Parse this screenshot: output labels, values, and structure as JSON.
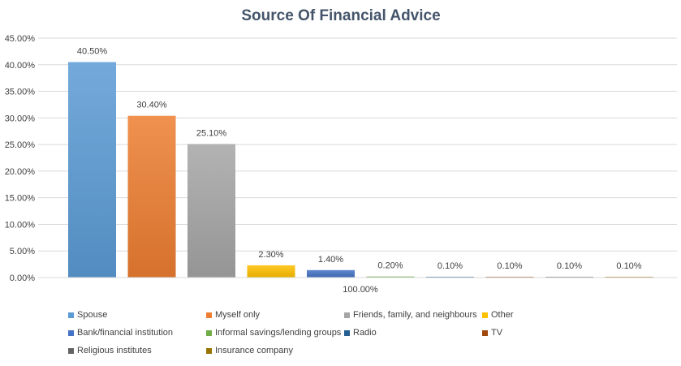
{
  "chart_data": {
    "type": "bar",
    "title": "Source Of Financial Advice",
    "categories": [
      "Spouse",
      "Myself only",
      "Friends, family, and neighbours",
      "Other",
      "Bank/financial institution",
      "Informal savings/lending groups",
      "Radio",
      "TV",
      "Religious institutes",
      "Insurance company"
    ],
    "values": [
      40.5,
      30.4,
      25.1,
      2.3,
      1.4,
      0.2,
      0.1,
      0.1,
      0.1,
      0.1
    ],
    "data_labels": [
      "40.50%",
      "30.40%",
      "25.10%",
      "2.30%",
      "1.40%",
      "0.20%",
      "0.10%",
      "0.10%",
      "0.10%",
      "0.10%"
    ],
    "colors": [
      "#5b9bd5",
      "#ed7d31",
      "#a5a5a5",
      "#ffc000",
      "#4472c4",
      "#70ad47",
      "#255e91",
      "#9e480e",
      "#636363",
      "#997300"
    ],
    "category_axis_label": "100.00%",
    "ylim": [
      0,
      45
    ],
    "yticks": [
      "0.00%",
      "5.00%",
      "10.00%",
      "15.00%",
      "20.00%",
      "25.00%",
      "30.00%",
      "35.00%",
      "40.00%",
      "45.00%"
    ],
    "ytick_values": [
      0,
      5,
      10,
      15,
      20,
      25,
      30,
      35,
      40,
      45
    ],
    "grid": true,
    "legend_position": "bottom",
    "xlabel": "",
    "ylabel": ""
  }
}
